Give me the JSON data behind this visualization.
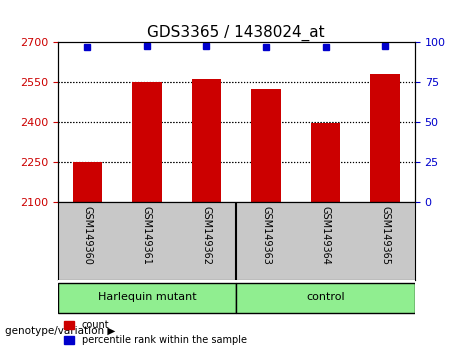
{
  "title": "GDS3365 / 1438024_at",
  "samples": [
    "GSM149360",
    "GSM149361",
    "GSM149362",
    "GSM149363",
    "GSM149364",
    "GSM149365"
  ],
  "count_values": [
    2248,
    2553,
    2562,
    2524,
    2398,
    2583
  ],
  "percentile_values": [
    97,
    98,
    98,
    97,
    97,
    98
  ],
  "ylim_left": [
    2100,
    2700
  ],
  "ylim_right": [
    0,
    100
  ],
  "yticks_left": [
    2100,
    2250,
    2400,
    2550,
    2700
  ],
  "yticks_right": [
    0,
    25,
    50,
    75,
    100
  ],
  "bar_color": "#cc0000",
  "dot_color": "#0000cc",
  "left_tick_color": "#cc0000",
  "right_tick_color": "#0000cc",
  "grid_color": "#000000",
  "group_labels": [
    "Harlequin mutant",
    "control"
  ],
  "group_ranges": [
    [
      0,
      3
    ],
    [
      3,
      6
    ]
  ],
  "group_colors": [
    "#90ee90",
    "#90ee90"
  ],
  "legend_count_label": "count",
  "legend_percentile_label": "percentile rank within the sample",
  "genotype_label": "genotype/variation",
  "bar_width": 0.5,
  "plot_bg_color": "#ffffff",
  "xlabel_area_color": "#c8c8c8"
}
